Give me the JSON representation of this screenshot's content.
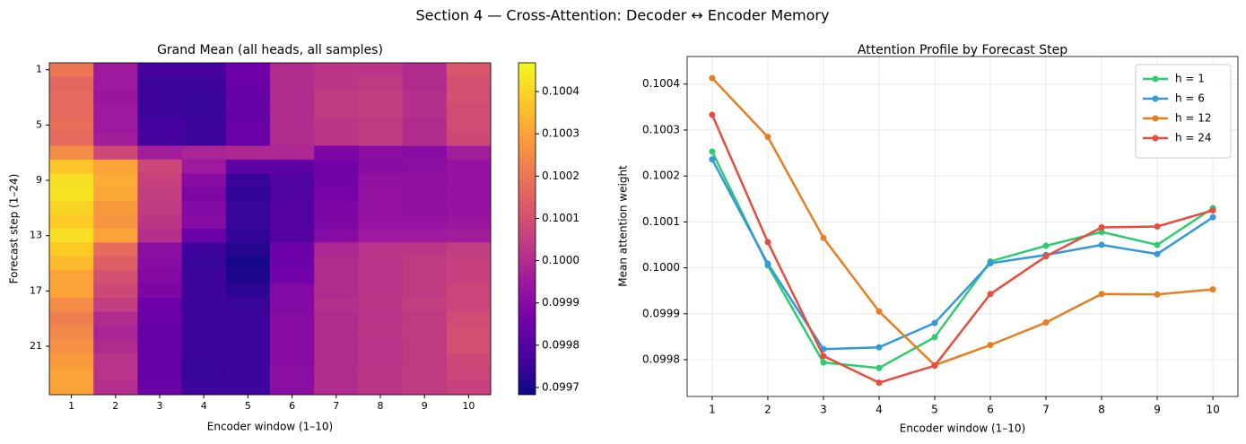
{
  "suptitle": "Section 4 — Cross-Attention: Decoder ↔ Encoder Memory",
  "chart_data": [
    {
      "type": "heatmap",
      "title": "Grand Mean (all heads, all samples)",
      "xlabel": "Encoder window (1–10)",
      "ylabel": "Forecast step (1–24)",
      "x": [
        1,
        2,
        3,
        4,
        5,
        6,
        7,
        8,
        9,
        10
      ],
      "y": [
        1,
        null,
        null,
        null,
        5,
        null,
        null,
        null,
        9,
        null,
        null,
        null,
        13,
        null,
        null,
        null,
        17,
        null,
        null,
        null,
        21,
        null,
        null,
        null
      ],
      "values": [
        [
          0.1002,
          0.09995,
          0.09977,
          0.09977,
          0.09985,
          0.1,
          0.10003,
          0.10003,
          0.1,
          0.10012
        ],
        [
          0.10016,
          0.09995,
          0.09976,
          0.09976,
          0.09984,
          0.1,
          0.10003,
          0.10004,
          0.1,
          0.1001
        ],
        [
          0.10017,
          0.09994,
          0.09976,
          0.09975,
          0.09983,
          0.1,
          0.10004,
          0.10005,
          0.10001,
          0.1001
        ],
        [
          0.10017,
          0.09995,
          0.09976,
          0.09975,
          0.09983,
          0.1,
          0.10004,
          0.10005,
          0.10001,
          0.10009
        ],
        [
          0.10018,
          0.09995,
          0.09977,
          0.09976,
          0.09984,
          0.1,
          0.10003,
          0.10004,
          0.1,
          0.10009
        ],
        [
          0.10017,
          0.09996,
          0.09977,
          0.09976,
          0.09984,
          0.1,
          0.10003,
          0.10004,
          0.1,
          0.10008
        ],
        [
          0.10025,
          0.10008,
          0.09996,
          0.09998,
          0.09999,
          0.09999,
          0.09988,
          0.09991,
          0.0999,
          0.09996
        ],
        [
          0.10037,
          0.1003,
          0.10008,
          0.09995,
          0.09982,
          0.09982,
          0.09986,
          0.0999,
          0.09991,
          0.09993
        ],
        [
          0.10042,
          0.10032,
          0.10006,
          0.0999,
          0.09975,
          0.09979,
          0.09986,
          0.09992,
          0.09992,
          0.09993
        ],
        [
          0.10043,
          0.10031,
          0.10005,
          0.09988,
          0.09974,
          0.09979,
          0.09987,
          0.09993,
          0.09992,
          0.09993
        ],
        [
          0.1004,
          0.10028,
          0.10004,
          0.09989,
          0.09975,
          0.0998,
          0.09988,
          0.09993,
          0.09992,
          0.09993
        ],
        [
          0.10038,
          0.10027,
          0.10003,
          0.0999,
          0.09975,
          0.0998,
          0.09988,
          0.09993,
          0.09993,
          0.09994
        ],
        [
          0.10042,
          0.1003,
          0.10001,
          0.09984,
          0.09974,
          0.0998,
          0.0999,
          0.09995,
          0.09995,
          0.09996
        ],
        [
          0.10038,
          0.10017,
          0.09991,
          0.09976,
          0.09972,
          0.09985,
          0.09999,
          0.10002,
          0.10003,
          0.10005
        ],
        [
          0.10035,
          0.10014,
          0.0999,
          0.09975,
          0.0997,
          0.09985,
          0.1,
          0.10002,
          0.10004,
          0.10006
        ],
        [
          0.1003,
          0.1001,
          0.09989,
          0.09976,
          0.09971,
          0.09986,
          0.1,
          0.10002,
          0.10004,
          0.10006
        ],
        [
          0.1003,
          0.10008,
          0.09988,
          0.09976,
          0.09973,
          0.09989,
          0.1,
          0.10002,
          0.10004,
          0.10007
        ],
        [
          0.10025,
          0.10005,
          0.09985,
          0.09976,
          0.09975,
          0.09989,
          0.10001,
          0.10003,
          0.10005,
          0.10007
        ],
        [
          0.10022,
          0.1,
          0.09984,
          0.09976,
          0.09976,
          0.0999,
          0.1,
          0.10002,
          0.10004,
          0.10009
        ],
        [
          0.10024,
          0.09998,
          0.09983,
          0.09976,
          0.09976,
          0.0999,
          0.1,
          0.10003,
          0.10004,
          0.1001
        ],
        [
          0.10026,
          0.1,
          0.09983,
          0.09976,
          0.09976,
          0.0999,
          0.1,
          0.10002,
          0.10004,
          0.1001
        ],
        [
          0.10028,
          0.10002,
          0.09983,
          0.09975,
          0.09976,
          0.0999,
          0.1,
          0.10002,
          0.10004,
          0.10008
        ],
        [
          0.1003,
          0.10002,
          0.09983,
          0.09975,
          0.09976,
          0.09991,
          0.1,
          0.10003,
          0.10004,
          0.10007
        ],
        [
          0.1003,
          0.10001,
          0.09984,
          0.09976,
          0.09976,
          0.09991,
          0.1,
          0.10003,
          0.10004,
          0.10006
        ]
      ],
      "colormap": [
        "#0d0887",
        "#46039f",
        "#7201a8",
        "#9c179e",
        "#bd3786",
        "#d8576b",
        "#ed7953",
        "#fb9f3a",
        "#fdca26",
        "#f0f921"
      ],
      "clim": [
        0.099683,
        0.100468
      ],
      "cticks": [
        0.0997,
        0.0998,
        0.0999,
        {
          "value": 0.1,
          "label": "0.1000"
        },
        0.1001,
        0.1002,
        0.1003,
        0.1004
      ]
    },
    {
      "type": "line",
      "title": "Attention Profile by Forecast Step",
      "xlabel": "Encoder window (1–10)",
      "ylabel": "Mean attention weight",
      "x": [
        1,
        2,
        3,
        4,
        5,
        6,
        7,
        8,
        9,
        10
      ],
      "series": [
        {
          "name": "h = 1",
          "color": "#2ecc71",
          "values": [
            0.100253,
            0.100005,
            0.099794,
            0.099782,
            0.099849,
            0.100014,
            0.100048,
            0.100078,
            0.10005,
            0.10013
          ]
        },
        {
          "name": "h = 6",
          "color": "#3498db",
          "values": [
            0.100236,
            0.100009,
            0.099823,
            0.099827,
            0.09988,
            0.10001,
            0.100028,
            0.10005,
            0.10003,
            0.10011
          ]
        },
        {
          "name": "h = 12",
          "color": "#e67e22",
          "values": [
            0.100413,
            0.100285,
            0.100065,
            0.099905,
            0.099788,
            0.099832,
            0.099881,
            0.099943,
            0.099942,
            0.099953
          ]
        },
        {
          "name": "h = 24",
          "color": "#e74c3c",
          "values": [
            0.100333,
            0.100056,
            0.099808,
            0.09975,
            0.099787,
            0.099943,
            0.100025,
            0.100088,
            0.10009,
            0.100125
          ]
        }
      ],
      "xlim": [
        0.55,
        10.45
      ],
      "ylim": [
        0.09972,
        0.10046
      ],
      "xticks": [
        1,
        2,
        3,
        4,
        5,
        6,
        7,
        8,
        9,
        10
      ],
      "yticks": [
        0.0998,
        0.0999,
        {
          "value": 0.1,
          "label": "0.1000"
        },
        0.1001,
        0.1002,
        0.1003,
        0.1004
      ],
      "grid": true,
      "legend": "upper right"
    }
  ]
}
